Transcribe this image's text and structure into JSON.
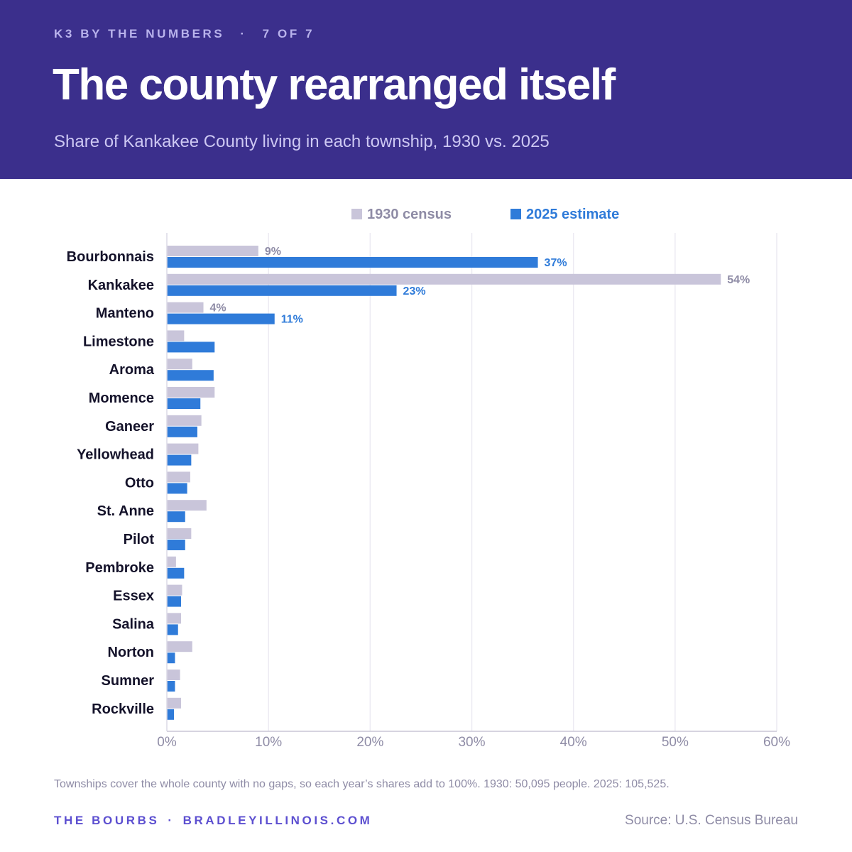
{
  "header": {
    "series_name": "K3 BY THE NUMBERS",
    "separator": "·",
    "position": "7 OF 7",
    "title": "The county rearranged itself",
    "subtitle": "Share of Kankakee County living in each township, 1930 vs. 2025"
  },
  "chart_data": {
    "type": "bar",
    "orientation": "horizontal",
    "categories": [
      "Bourbonnais",
      "Kankakee",
      "Manteno",
      "Limestone",
      "Aroma",
      "Momence",
      "Ganeer",
      "Yellowhead",
      "Otto",
      "St. Anne",
      "Pilot",
      "Pembroke",
      "Essex",
      "Salina",
      "Norton",
      "Sumner",
      "Rockville"
    ],
    "series": [
      {
        "name": "1930 census",
        "color": "#c9c5da",
        "label_color": "#8f8ca6",
        "values": [
          9.0,
          54.5,
          3.6,
          1.7,
          2.5,
          4.7,
          3.4,
          3.1,
          2.3,
          3.9,
          2.4,
          0.9,
          1.5,
          1.4,
          2.5,
          1.3,
          1.4
        ],
        "data_labels": [
          "9%",
          "54%",
          "4%",
          "",
          "",
          "",
          "",
          "",
          "",
          "",
          "",
          "",
          "",
          "",
          "",
          "",
          ""
        ]
      },
      {
        "name": "2025 estimate",
        "color": "#2f7bd9",
        "label_color": "#2f7bd9",
        "values": [
          36.5,
          22.6,
          10.6,
          4.7,
          4.6,
          3.3,
          3.0,
          2.4,
          2.0,
          1.8,
          1.8,
          1.7,
          1.4,
          1.1,
          0.8,
          0.8,
          0.7
        ],
        "data_labels": [
          "37%",
          "23%",
          "11%",
          "",
          "",
          "",
          "",
          "",
          "",
          "",
          "",
          "",
          "",
          "",
          "",
          "",
          ""
        ]
      }
    ],
    "xlim": [
      0,
      60
    ],
    "xticks": [
      0,
      10,
      20,
      30,
      40,
      50,
      60
    ],
    "xtick_labels": [
      "0%",
      "10%",
      "20%",
      "30%",
      "40%",
      "50%",
      "60%"
    ],
    "grid": true,
    "legend": "top-center"
  },
  "footer": {
    "note": "Townships cover the whole county with no gaps, so each year’s shares add to 100%. 1930: 50,095 people. 2025: 105,525.",
    "brand_name": "THE BOURBS",
    "separator": "·",
    "brand_site": "BRADLEYILLINOIS.COM",
    "source": "Source: U.S. Census Bureau"
  }
}
